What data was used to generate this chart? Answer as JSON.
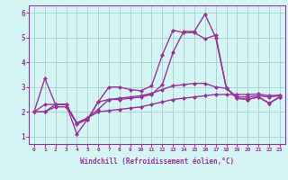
{
  "x": [
    0,
    1,
    2,
    3,
    4,
    5,
    6,
    7,
    8,
    9,
    10,
    11,
    12,
    13,
    14,
    15,
    16,
    17,
    18,
    19,
    20,
    21,
    22,
    23
  ],
  "line1": [
    2.0,
    3.35,
    2.3,
    2.3,
    1.5,
    1.7,
    2.4,
    3.0,
    3.0,
    2.9,
    2.85,
    3.05,
    4.3,
    5.3,
    5.2,
    5.2,
    4.95,
    5.1,
    2.95,
    2.55,
    2.5,
    2.6,
    2.35,
    2.6
  ],
  "line2": [
    2.0,
    2.0,
    2.3,
    2.3,
    1.1,
    1.7,
    2.4,
    2.5,
    2.5,
    2.55,
    2.6,
    2.7,
    3.1,
    4.4,
    5.25,
    5.25,
    5.95,
    5.0,
    2.95,
    2.55,
    2.5,
    2.6,
    2.35,
    2.6
  ],
  "line3": [
    2.0,
    2.3,
    2.3,
    2.3,
    1.55,
    1.75,
    2.1,
    2.5,
    2.55,
    2.6,
    2.65,
    2.75,
    2.9,
    3.05,
    3.1,
    3.15,
    3.15,
    3.0,
    2.95,
    2.6,
    2.6,
    2.65,
    2.6,
    2.65
  ],
  "line4": [
    2.0,
    2.0,
    2.2,
    2.2,
    1.55,
    1.75,
    2.0,
    2.05,
    2.1,
    2.15,
    2.2,
    2.3,
    2.4,
    2.5,
    2.55,
    2.6,
    2.65,
    2.7,
    2.7,
    2.7,
    2.7,
    2.72,
    2.65,
    2.68
  ],
  "color": "#993399",
  "background_color": "#d5f5f5",
  "grid_color": "#aad4d4",
  "ylabel_values": [
    1,
    2,
    3,
    4,
    5,
    6
  ],
  "xlabel": "Windchill (Refroidissement éolien,°C)",
  "ylim": [
    0.7,
    6.3
  ],
  "xlim": [
    -0.5,
    23.5
  ],
  "marker": "D",
  "marker_size": 2,
  "line_width": 1.0
}
